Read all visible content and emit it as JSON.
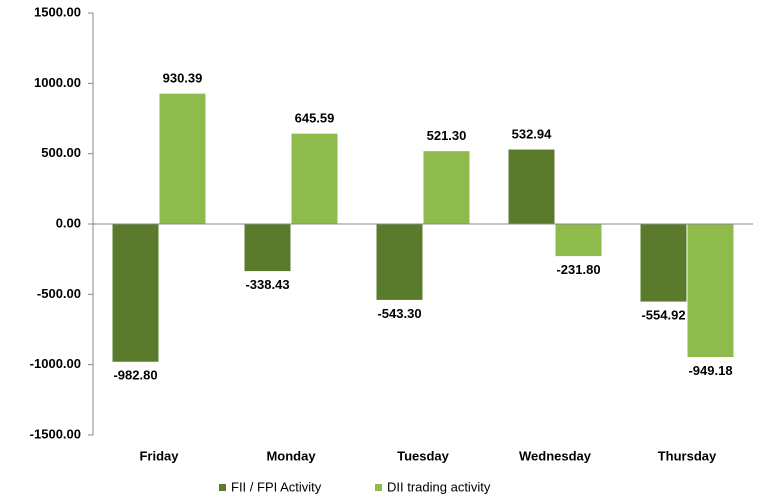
{
  "chart_data": {
    "type": "bar",
    "categories": [
      "Friday",
      "Monday",
      "Tuesday",
      "Wednesday",
      "Thursday"
    ],
    "series": [
      {
        "name": "FII / FPI Activity",
        "color": "#5b7b2c",
        "values": [
          -982.8,
          -338.43,
          -543.3,
          532.94,
          -554.92
        ],
        "value_labels": [
          "-982.80",
          "-338.43",
          "-543.30",
          "532.94",
          "-554.92"
        ]
      },
      {
        "name": "DII trading activity",
        "color": "#8fba4c",
        "values": [
          930.39,
          645.59,
          521.3,
          -231.8,
          -949.18
        ],
        "value_labels": [
          "930.39",
          "645.59",
          "521.30",
          "-231.80",
          "-949.18"
        ]
      }
    ],
    "ylim": [
      -1500,
      1500
    ],
    "yticks": [
      {
        "value": -1500,
        "label": "-1500.00"
      },
      {
        "value": -1000,
        "label": "-1000.00"
      },
      {
        "value": -500,
        "label": "-500.00"
      },
      {
        "value": 0,
        "label": "0.00"
      },
      {
        "value": 500,
        "label": "500.00"
      },
      {
        "value": 1000,
        "label": "1000.00"
      },
      {
        "value": 1500,
        "label": "1500.00"
      }
    ],
    "legend": "bottom"
  }
}
